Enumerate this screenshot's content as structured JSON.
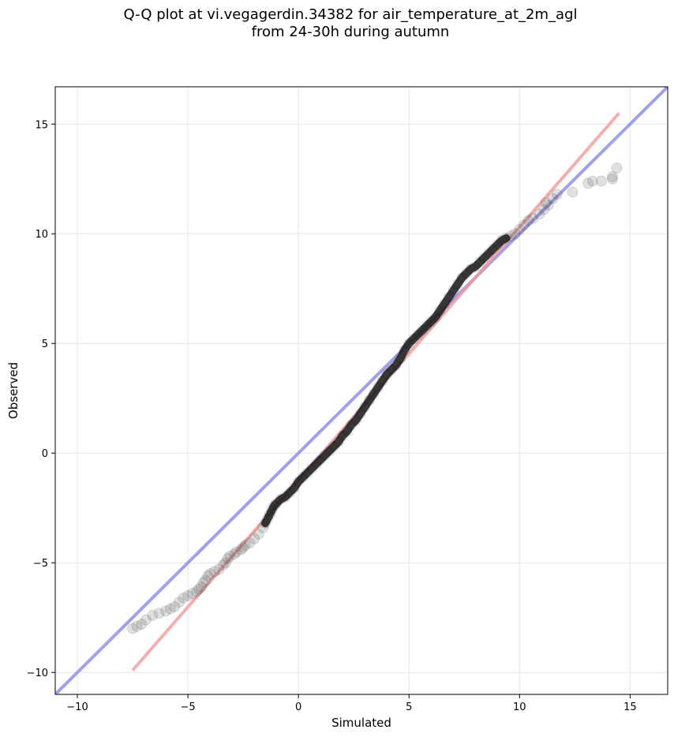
{
  "chart_data": {
    "type": "scatter",
    "title": "Q-Q plot at vi.vegagerdin.34382 for air_temperature_at_2m_agl",
    "subtitle": "from 24-30h during autumn",
    "xlabel": "Simulated",
    "ylabel": "Observed",
    "xlim": [
      -11.0,
      16.7
    ],
    "ylim": [
      -11.0,
      16.7
    ],
    "xticks": [
      -10,
      -5,
      0,
      5,
      10,
      15
    ],
    "yticks": [
      -10,
      -5,
      0,
      5,
      10,
      15
    ],
    "xtick_labels": [
      "−10",
      "−5",
      "0",
      "5",
      "10",
      "15"
    ],
    "ytick_labels": [
      "−10",
      "−5",
      "0",
      "5",
      "10",
      "15"
    ],
    "grid": true,
    "reference_lines": [
      {
        "kind": "identity",
        "color": "#8888ee",
        "x": [
          -11.0,
          16.7
        ],
        "y": [
          -11.0,
          16.7
        ]
      },
      {
        "kind": "fit",
        "color": "#f29999",
        "x": [
          -7.5,
          14.5
        ],
        "y": [
          -9.9,
          15.5
        ]
      }
    ],
    "points": [
      [
        -7.5,
        -8.0
      ],
      [
        -7.3,
        -7.9
      ],
      [
        -7.1,
        -7.8
      ],
      [
        -6.9,
        -7.6
      ],
      [
        -6.6,
        -7.4
      ],
      [
        -6.3,
        -7.3
      ],
      [
        -6.0,
        -7.2
      ],
      [
        -5.8,
        -7.1
      ],
      [
        -5.6,
        -7.0
      ],
      [
        -5.4,
        -6.8
      ],
      [
        -5.2,
        -6.6
      ],
      [
        -5.0,
        -6.5
      ],
      [
        -4.8,
        -6.4
      ],
      [
        -4.6,
        -6.3
      ],
      [
        -4.5,
        -6.2
      ],
      [
        -4.4,
        -6.1
      ],
      [
        -4.3,
        -5.9
      ],
      [
        -4.2,
        -5.8
      ],
      [
        -4.1,
        -5.6
      ],
      [
        -4.0,
        -5.5
      ],
      [
        -3.8,
        -5.4
      ],
      [
        -3.6,
        -5.3
      ],
      [
        -3.4,
        -5.1
      ],
      [
        -3.3,
        -5.0
      ],
      [
        -3.2,
        -4.8
      ],
      [
        -3.1,
        -4.7
      ],
      [
        -2.9,
        -4.6
      ],
      [
        -2.8,
        -4.5
      ],
      [
        -2.6,
        -4.4
      ],
      [
        -2.5,
        -4.3
      ],
      [
        -2.4,
        -4.2
      ],
      [
        -2.2,
        -4.1
      ],
      [
        -2.0,
        -3.9
      ],
      [
        -1.8,
        -3.7
      ],
      [
        -1.6,
        -3.4
      ],
      [
        -1.5,
        -3.2
      ],
      [
        -1.4,
        -3.0
      ],
      [
        -1.3,
        -2.8
      ],
      [
        -1.2,
        -2.6
      ],
      [
        -1.1,
        -2.4
      ],
      [
        -1.0,
        -2.3
      ],
      [
        -0.8,
        -2.1
      ],
      [
        -0.6,
        -2.0
      ],
      [
        -0.4,
        -1.8
      ],
      [
        -0.2,
        -1.6
      ],
      [
        0.0,
        -1.3
      ],
      [
        0.2,
        -1.1
      ],
      [
        0.4,
        -0.9
      ],
      [
        0.6,
        -0.7
      ],
      [
        0.8,
        -0.5
      ],
      [
        1.0,
        -0.3
      ],
      [
        1.2,
        -0.1
      ],
      [
        1.4,
        0.1
      ],
      [
        1.6,
        0.3
      ],
      [
        1.8,
        0.5
      ],
      [
        2.0,
        0.8
      ],
      [
        2.2,
        1.0
      ],
      [
        2.4,
        1.3
      ],
      [
        2.6,
        1.5
      ],
      [
        2.8,
        1.8
      ],
      [
        3.0,
        2.1
      ],
      [
        3.2,
        2.4
      ],
      [
        3.4,
        2.7
      ],
      [
        3.6,
        3.0
      ],
      [
        3.8,
        3.3
      ],
      [
        4.0,
        3.6
      ],
      [
        4.2,
        3.8
      ],
      [
        4.4,
        4.0
      ],
      [
        4.6,
        4.3
      ],
      [
        4.8,
        4.7
      ],
      [
        5.0,
        5.0
      ],
      [
        5.2,
        5.2
      ],
      [
        5.4,
        5.4
      ],
      [
        5.6,
        5.6
      ],
      [
        5.8,
        5.8
      ],
      [
        6.0,
        6.0
      ],
      [
        6.2,
        6.2
      ],
      [
        6.4,
        6.5
      ],
      [
        6.6,
        6.8
      ],
      [
        6.8,
        7.1
      ],
      [
        7.0,
        7.4
      ],
      [
        7.2,
        7.7
      ],
      [
        7.4,
        8.0
      ],
      [
        7.6,
        8.2
      ],
      [
        7.8,
        8.4
      ],
      [
        8.0,
        8.5
      ],
      [
        8.2,
        8.7
      ],
      [
        8.4,
        8.9
      ],
      [
        8.6,
        9.1
      ],
      [
        8.8,
        9.3
      ],
      [
        9.0,
        9.5
      ],
      [
        9.2,
        9.7
      ],
      [
        9.4,
        9.8
      ],
      [
        9.6,
        9.9
      ],
      [
        9.8,
        10.0
      ],
      [
        10.0,
        10.2
      ],
      [
        10.2,
        10.4
      ],
      [
        10.4,
        10.6
      ],
      [
        10.6,
        10.7
      ],
      [
        10.9,
        10.9
      ],
      [
        11.1,
        11.1
      ],
      [
        11.3,
        11.3
      ],
      [
        11.5,
        11.6
      ],
      [
        11.7,
        11.8
      ],
      [
        11.2,
        11.4
      ],
      [
        12.4,
        11.9
      ],
      [
        13.1,
        12.3
      ],
      [
        13.3,
        12.4
      ],
      [
        13.7,
        12.4
      ],
      [
        14.2,
        12.5
      ],
      [
        14.2,
        12.6
      ],
      [
        14.4,
        13.0
      ]
    ]
  }
}
